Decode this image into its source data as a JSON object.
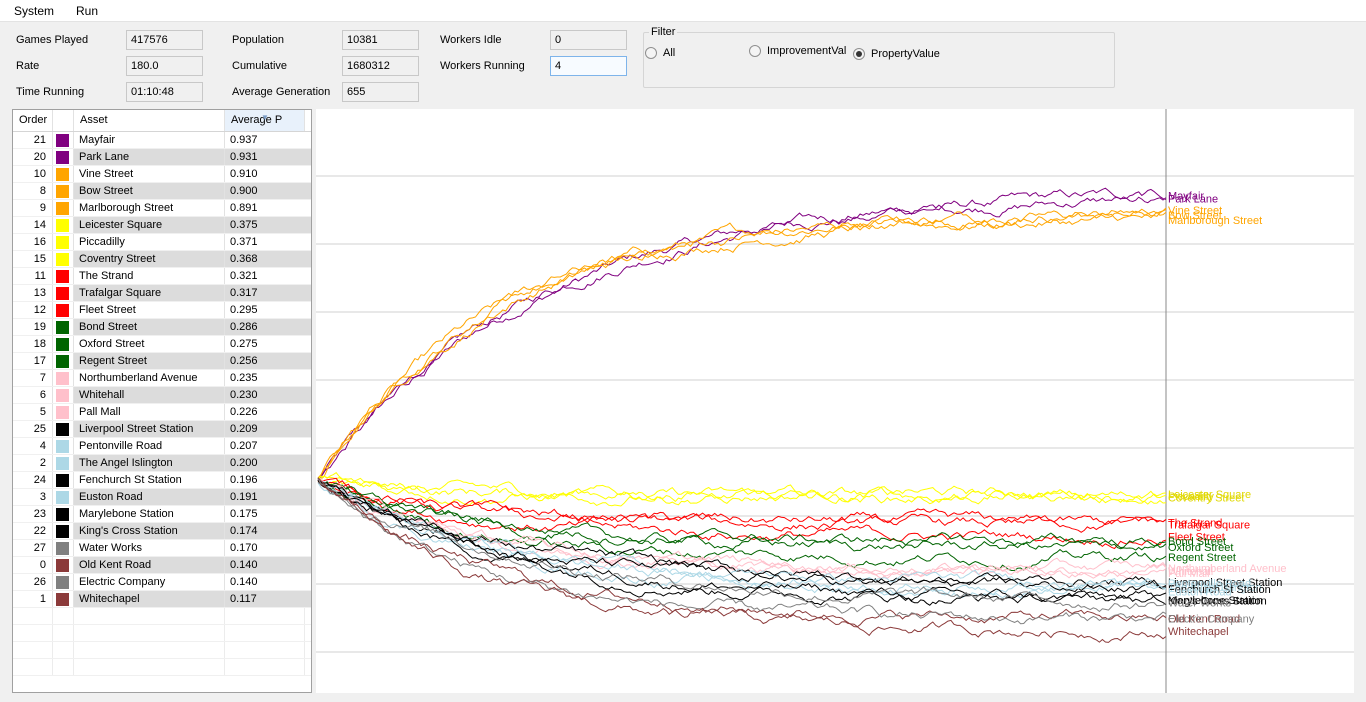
{
  "menu": [
    "System",
    "Run"
  ],
  "stats": {
    "games_played_label": "Games Played",
    "games_played": "417576",
    "rate_label": "Rate",
    "rate": "180.0",
    "time_running_label": "Time Running",
    "time_running": "01:10:48",
    "population_label": "Population",
    "population": "10381",
    "cumulative_label": "Cumulative",
    "cumulative": "1680312",
    "avg_gen_label": "Average Generation",
    "avg_gen": "655",
    "workers_idle_label": "Workers Idle",
    "workers_idle": "0",
    "workers_running_label": "Workers Running",
    "workers_running": "4"
  },
  "filter": {
    "title": "Filter",
    "options": [
      "All",
      "ImprovementVal",
      "PropertyValue"
    ],
    "selected": "PropertyValue"
  },
  "table": {
    "headers": [
      "Order",
      "",
      "Asset",
      "Average P"
    ],
    "rows": [
      {
        "order": "21",
        "color": "#800080",
        "asset": "Mayfair",
        "avg": "0.937"
      },
      {
        "order": "20",
        "color": "#800080",
        "asset": "Park Lane",
        "avg": "0.931"
      },
      {
        "order": "10",
        "color": "#ffa500",
        "asset": "Vine Street",
        "avg": "0.910"
      },
      {
        "order": "8",
        "color": "#ffa500",
        "asset": "Bow Street",
        "avg": "0.900"
      },
      {
        "order": "9",
        "color": "#ffa500",
        "asset": "Marlborough Street",
        "avg": "0.891"
      },
      {
        "order": "14",
        "color": "#ffff00",
        "asset": "Leicester Square",
        "avg": "0.375"
      },
      {
        "order": "16",
        "color": "#ffff00",
        "asset": "Piccadilly",
        "avg": "0.371"
      },
      {
        "order": "15",
        "color": "#ffff00",
        "asset": "Coventry Street",
        "avg": "0.368"
      },
      {
        "order": "11",
        "color": "#ff0000",
        "asset": "The Strand",
        "avg": "0.321"
      },
      {
        "order": "13",
        "color": "#ff0000",
        "asset": "Trafalgar Square",
        "avg": "0.317"
      },
      {
        "order": "12",
        "color": "#ff0000",
        "asset": "Fleet Street",
        "avg": "0.295"
      },
      {
        "order": "19",
        "color": "#006400",
        "asset": "Bond Street",
        "avg": "0.286"
      },
      {
        "order": "18",
        "color": "#006400",
        "asset": "Oxford Street",
        "avg": "0.275"
      },
      {
        "order": "17",
        "color": "#006400",
        "asset": "Regent Street",
        "avg": "0.256"
      },
      {
        "order": "7",
        "color": "#ffc0cb",
        "asset": "Northumberland Avenue",
        "avg": "0.235"
      },
      {
        "order": "6",
        "color": "#ffc0cb",
        "asset": "Whitehall",
        "avg": "0.230"
      },
      {
        "order": "5",
        "color": "#ffc0cb",
        "asset": "Pall Mall",
        "avg": "0.226"
      },
      {
        "order": "25",
        "color": "#000000",
        "asset": "Liverpool Street Station",
        "avg": "0.209"
      },
      {
        "order": "4",
        "color": "#add8e6",
        "asset": "Pentonville Road",
        "avg": "0.207"
      },
      {
        "order": "2",
        "color": "#add8e6",
        "asset": "The Angel Islington",
        "avg": "0.200"
      },
      {
        "order": "24",
        "color": "#000000",
        "asset": "Fenchurch St Station",
        "avg": "0.196"
      },
      {
        "order": "3",
        "color": "#add8e6",
        "asset": "Euston Road",
        "avg": "0.191"
      },
      {
        "order": "23",
        "color": "#000000",
        "asset": "Marylebone Station",
        "avg": "0.175"
      },
      {
        "order": "22",
        "color": "#000000",
        "asset": "King's Cross Station",
        "avg": "0.174"
      },
      {
        "order": "27",
        "color": "#808080",
        "asset": "Water Works",
        "avg": "0.170"
      },
      {
        "order": "0",
        "color": "#8b3a3a",
        "asset": "Old Kent Road",
        "avg": "0.140"
      },
      {
        "order": "26",
        "color": "#808080",
        "asset": "Electric Company",
        "avg": "0.140"
      },
      {
        "order": "1",
        "color": "#8b3a3a",
        "asset": "Whitechapel",
        "avg": "0.117"
      }
    ]
  },
  "chart_data": {
    "type": "line",
    "title": "",
    "xlabel": "",
    "ylabel": "",
    "ylim": [
      0,
      1.1
    ],
    "grid": true,
    "start_value": 0.4,
    "series": [
      {
        "name": "Mayfair",
        "color": "#800080",
        "final": 0.937,
        "rise": 0.08
      },
      {
        "name": "Park Lane",
        "color": "#800080",
        "final": 0.931,
        "rise": 0.09
      },
      {
        "name": "Vine Street",
        "color": "#ffa500",
        "final": 0.91,
        "rise": 0.16
      },
      {
        "name": "Bow Street",
        "color": "#ffa500",
        "final": 0.9,
        "rise": 0.18
      },
      {
        "name": "Marlborough Street",
        "color": "#ffa500",
        "final": 0.891,
        "rise": 0.2
      },
      {
        "name": "Leicester Square",
        "color": "#ffff00",
        "final": 0.375,
        "rise": 0.4
      },
      {
        "name": "Piccadilly",
        "color": "#ffff00",
        "final": 0.371,
        "rise": 0.45
      },
      {
        "name": "Coventry Street",
        "color": "#ffff00",
        "final": 0.368,
        "rise": 0.5
      },
      {
        "name": "The Strand",
        "color": "#ff0000",
        "final": 0.321,
        "rise": 0.35
      },
      {
        "name": "Trafalgar Square",
        "color": "#ff0000",
        "final": 0.317,
        "rise": 0.4
      },
      {
        "name": "Fleet Street",
        "color": "#ff0000",
        "final": 0.295,
        "rise": 0.3
      },
      {
        "name": "Bond Street",
        "color": "#006400",
        "final": 0.286,
        "rise": 0.3
      },
      {
        "name": "Oxford Street",
        "color": "#006400",
        "final": 0.275,
        "rise": 0.25
      },
      {
        "name": "Regent Street",
        "color": "#006400",
        "final": 0.256,
        "rise": 0.3
      },
      {
        "name": "Northumberland Avenue",
        "color": "#ffc0cb",
        "final": 0.235,
        "rise": 0.25
      },
      {
        "name": "Whitehall",
        "color": "#ffc0cb",
        "final": 0.23,
        "rise": 0.22
      },
      {
        "name": "Pall Mall",
        "color": "#ffc0cb",
        "final": 0.226,
        "rise": 0.2
      },
      {
        "name": "Liverpool Street Station",
        "color": "#000000",
        "final": 0.209,
        "rise": 0.12
      },
      {
        "name": "Pentonville Road",
        "color": "#add8e6",
        "final": 0.207,
        "rise": 0.15
      },
      {
        "name": "The Angel Islington",
        "color": "#add8e6",
        "final": 0.2,
        "rise": 0.18
      },
      {
        "name": "Fenchurch St Station",
        "color": "#000000",
        "final": 0.196,
        "rise": 0.12
      },
      {
        "name": "Euston Road",
        "color": "#add8e6",
        "final": 0.191,
        "rise": 0.2
      },
      {
        "name": "Marylebone Station",
        "color": "#000000",
        "final": 0.175,
        "rise": 0.1
      },
      {
        "name": "King's Cross Station",
        "color": "#000000",
        "final": 0.174,
        "rise": 0.14
      },
      {
        "name": "Water Works",
        "color": "#808080",
        "final": 0.17,
        "rise": 0.08
      },
      {
        "name": "Old Kent Road",
        "color": "#8b3a3a",
        "final": 0.14,
        "rise": 0.2
      },
      {
        "name": "Electric Company",
        "color": "#808080",
        "final": 0.14,
        "rise": 0.25
      },
      {
        "name": "Whitechapel",
        "color": "#8b3a3a",
        "final": 0.117,
        "rise": 0.22
      }
    ]
  }
}
